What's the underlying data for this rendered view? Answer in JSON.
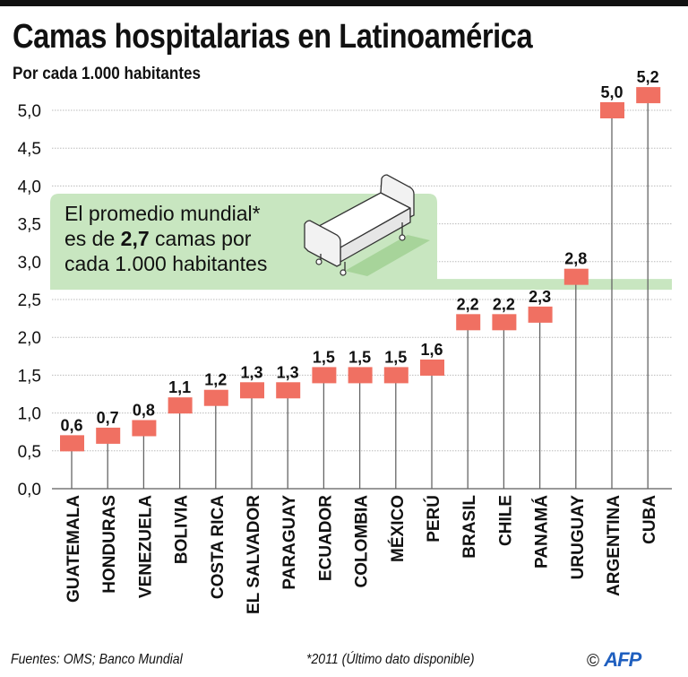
{
  "header": {
    "title": "Camas hospitalarias en Latinoamérica",
    "subtitle": "Por cada 1.000 habitantes"
  },
  "annotation": {
    "line1": "El promedio mundial*",
    "line2_pre": "es de ",
    "line2_bold": "2,7",
    "line2_post": " camas por",
    "line3": "cada 1.000 habitantes",
    "icon": "hospital-bed-icon"
  },
  "footer": {
    "sources": "Fuentes: OMS; Banco Mundial",
    "note": "*2011 (Último dato disponible)",
    "copyright_symbol": "©",
    "agency": "AFP"
  },
  "colors": {
    "marker": "#f07062",
    "band": "#c8e6c0",
    "stem": "#666666",
    "grid": "#bbbbbb",
    "agency_logo": "#1f5fbf"
  },
  "chart_data": {
    "type": "dot-stem",
    "title": "Camas hospitalarias en Latinoamérica",
    "subtitle": "Por cada 1.000 habitantes",
    "xlabel": "",
    "ylabel": "Por cada 1.000 habitantes",
    "ylim": [
      0,
      5.0
    ],
    "yticks": [
      0.0,
      0.5,
      1.0,
      1.5,
      2.0,
      2.5,
      3.0,
      3.5,
      4.0,
      4.5,
      5.0
    ],
    "ytick_labels": [
      "0,0",
      "0,5",
      "1,0",
      "1,5",
      "2,0",
      "2,5",
      "3,0",
      "3,5",
      "4,0",
      "4,5",
      "5,0"
    ],
    "grid": true,
    "reference_line": {
      "value": 2.7,
      "label": "Promedio mundial"
    },
    "categories": [
      "GUATEMALA",
      "HONDURAS",
      "VENEZUELA",
      "BOLIVIA",
      "COSTA RICA",
      "EL SALVADOR",
      "PARAGUAY",
      "ECUADOR",
      "COLOMBIA",
      "MÉXICO",
      "PERÚ",
      "BRASIL",
      "CHILE",
      "PANAMÁ",
      "URUGUAY",
      "ARGENTINA",
      "CUBA"
    ],
    "values": [
      0.6,
      0.7,
      0.8,
      1.1,
      1.2,
      1.3,
      1.3,
      1.5,
      1.5,
      1.5,
      1.6,
      2.2,
      2.2,
      2.3,
      2.8,
      5.0,
      5.2
    ],
    "value_labels": [
      "0,6",
      "0,7",
      "0,8",
      "1,1",
      "1,2",
      "1,3",
      "1,3",
      "1,5",
      "1,5",
      "1,5",
      "1,6",
      "2,2",
      "2,2",
      "2,3",
      "2,8",
      "5,0",
      "5,2"
    ]
  }
}
